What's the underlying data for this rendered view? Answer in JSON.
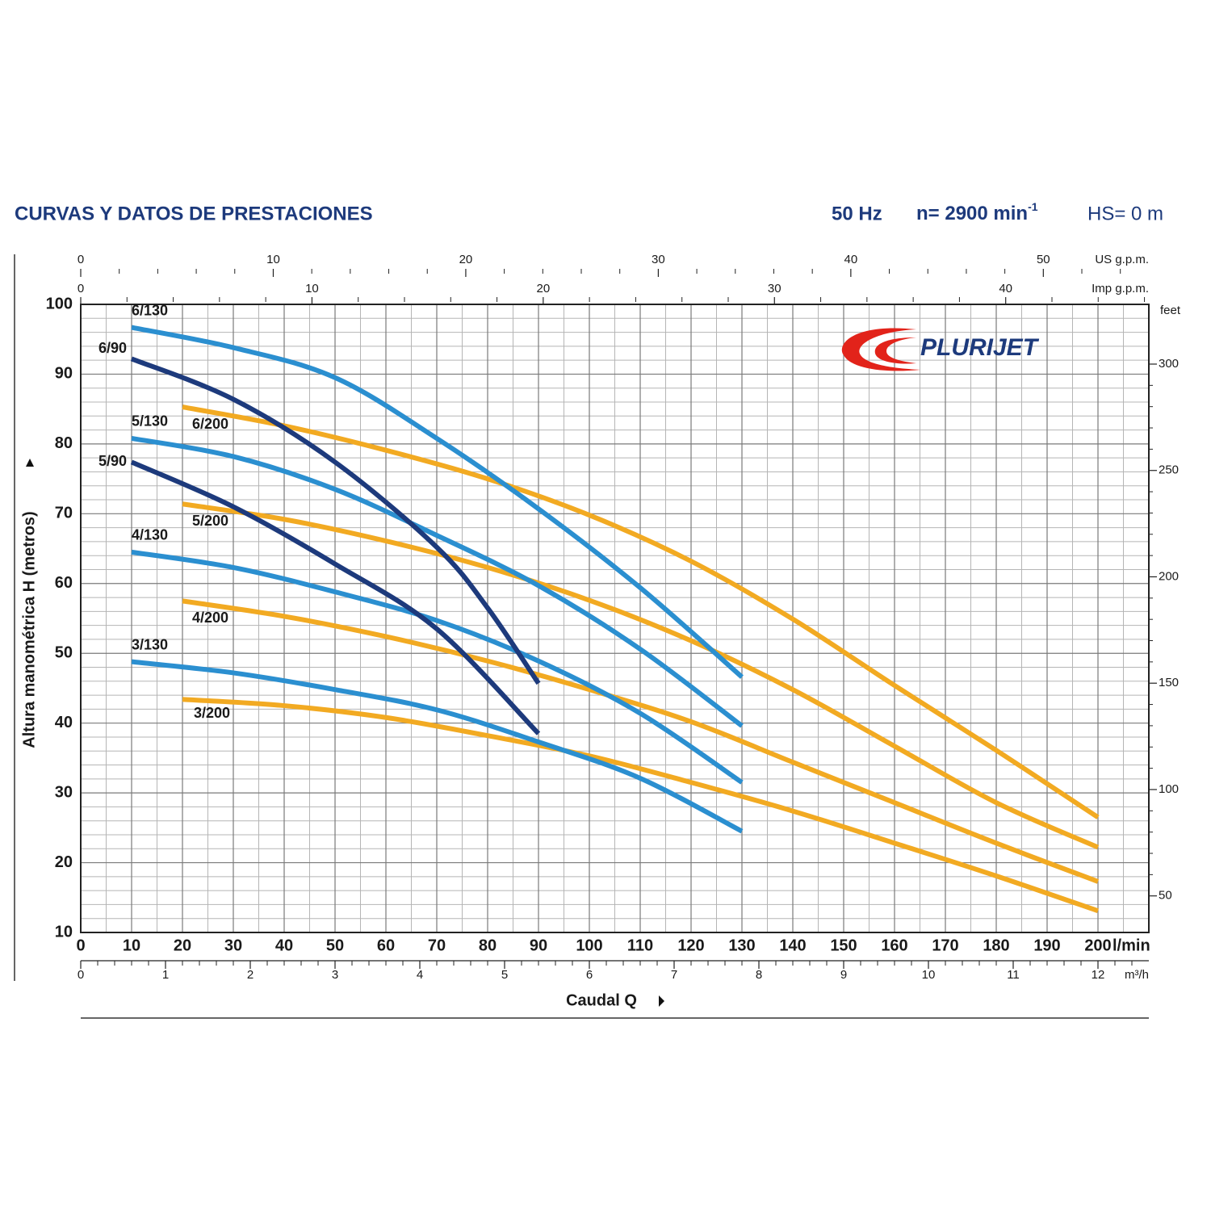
{
  "chart_data": {
    "type": "line",
    "title": "CURVAS Y DATOS DE PRESTACIONES",
    "frequency": "50 Hz",
    "speed": "n= 2900 min",
    "speed_exponent": "-1",
    "suction": "HS= 0 m",
    "logo": "PLURIJET",
    "x_label": "Caudal Q",
    "x_unit": "l/min",
    "y_label": "Altura manométrica H (metros)",
    "y2_label": "feet",
    "xlim": [
      0,
      210
    ],
    "xticks": [
      0,
      10,
      20,
      30,
      40,
      50,
      60,
      70,
      80,
      90,
      100,
      110,
      120,
      130,
      140,
      150,
      160,
      170,
      180,
      190,
      200
    ],
    "ylim": [
      10,
      100
    ],
    "yticks": [
      10,
      20,
      30,
      40,
      50,
      60,
      70,
      80,
      90,
      100
    ],
    "y2lim": [
      32.81,
      328.08
    ],
    "y2ticks": [
      50,
      100,
      150,
      200,
      250,
      300
    ],
    "grid": true,
    "secondary_x_axes": [
      {
        "label": "US g.p.m.",
        "position": "top",
        "lim": [
          0,
          55.48
        ],
        "ticks": [
          0,
          10,
          20,
          30,
          40,
          50
        ]
      },
      {
        "label": "Imp g.p.m.",
        "position": "top",
        "lim": [
          0,
          46.19
        ],
        "ticks": [
          0,
          10,
          20,
          30,
          40
        ]
      },
      {
        "label": "m³/h",
        "position": "bottom",
        "lim": [
          0,
          12.6
        ],
        "ticks": [
          0,
          1,
          2,
          3,
          4,
          5,
          6,
          7,
          8,
          9,
          10,
          11,
          12
        ]
      }
    ],
    "series": [
      {
        "name": "6/130",
        "color": "#2b8fd0",
        "x": [
          10,
          30,
          50,
          70,
          90,
          110,
          130
        ],
        "values": [
          96.7,
          93.8,
          89.5,
          80.8,
          70.7,
          59.4,
          46.6
        ]
      },
      {
        "name": "6/90",
        "color": "#1d3a7c",
        "x": [
          10,
          30,
          50,
          70,
          80,
          90
        ],
        "values": [
          92.2,
          86.4,
          77.4,
          65.2,
          56.5,
          45.7
        ]
      },
      {
        "name": "5/130",
        "color": "#2b8fd0",
        "x": [
          10,
          30,
          50,
          70,
          90,
          110,
          130
        ],
        "values": [
          80.8,
          78.2,
          73.5,
          66.9,
          59.7,
          50.6,
          39.6
        ]
      },
      {
        "name": "5/90",
        "color": "#1d3a7c",
        "x": [
          10,
          30,
          50,
          70,
          90
        ],
        "values": [
          77.4,
          71.0,
          62.8,
          53.5,
          38.5
        ]
      },
      {
        "name": "4/130",
        "color": "#2b8fd0",
        "x": [
          10,
          30,
          50,
          70,
          90,
          110,
          130
        ],
        "values": [
          64.5,
          62.3,
          58.8,
          54.7,
          48.9,
          41.4,
          31.5
        ]
      },
      {
        "name": "3/130",
        "color": "#2b8fd0",
        "x": [
          10,
          30,
          50,
          70,
          90,
          110,
          130
        ],
        "values": [
          48.8,
          47.2,
          44.8,
          41.9,
          37.3,
          32.1,
          24.5
        ]
      },
      {
        "name": "6/200",
        "color": "#f2aa22",
        "x": [
          20,
          40,
          60,
          80,
          100,
          120,
          140,
          160,
          180,
          200
        ],
        "values": [
          85.3,
          82.6,
          79.1,
          75.0,
          69.8,
          63.2,
          54.9,
          45.4,
          36.1,
          26.5
        ]
      },
      {
        "name": "5/200",
        "color": "#f2aa22",
        "x": [
          20,
          40,
          60,
          80,
          100,
          120,
          140,
          160,
          180,
          200
        ],
        "values": [
          71.4,
          69.2,
          66.1,
          62.3,
          57.6,
          51.8,
          44.8,
          36.7,
          28.6,
          22.2
        ]
      },
      {
        "name": "4/200",
        "color": "#f2aa22",
        "x": [
          20,
          40,
          60,
          80,
          100,
          120,
          140,
          160,
          180,
          200
        ],
        "values": [
          57.5,
          55.3,
          52.4,
          48.9,
          44.8,
          40.2,
          34.4,
          28.6,
          22.8,
          17.3
        ]
      },
      {
        "name": "3/200",
        "color": "#f2aa22",
        "x": [
          20,
          40,
          60,
          80,
          100,
          120,
          140,
          160,
          180,
          200
        ],
        "values": [
          43.4,
          42.5,
          40.8,
          38.2,
          35.3,
          31.5,
          27.4,
          22.8,
          18.1,
          13.1
        ]
      }
    ]
  }
}
